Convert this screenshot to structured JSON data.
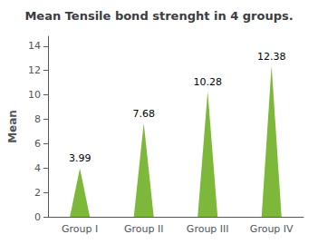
{
  "chart_data": {
    "type": "bar",
    "marker": "triangle",
    "title": "Mean Tensile bond strenght in 4 groups.",
    "ylabel": "Mean",
    "categories": [
      "Group I",
      "Group II",
      "Group III",
      "Group IV"
    ],
    "values": [
      3.99,
      7.68,
      10.28,
      12.38
    ],
    "color": "#7DB83A",
    "ylim": [
      0,
      14.8
    ],
    "yticks": [
      0,
      2,
      4,
      6,
      8,
      10,
      12,
      14
    ],
    "grid": false,
    "data_labels": true
  }
}
